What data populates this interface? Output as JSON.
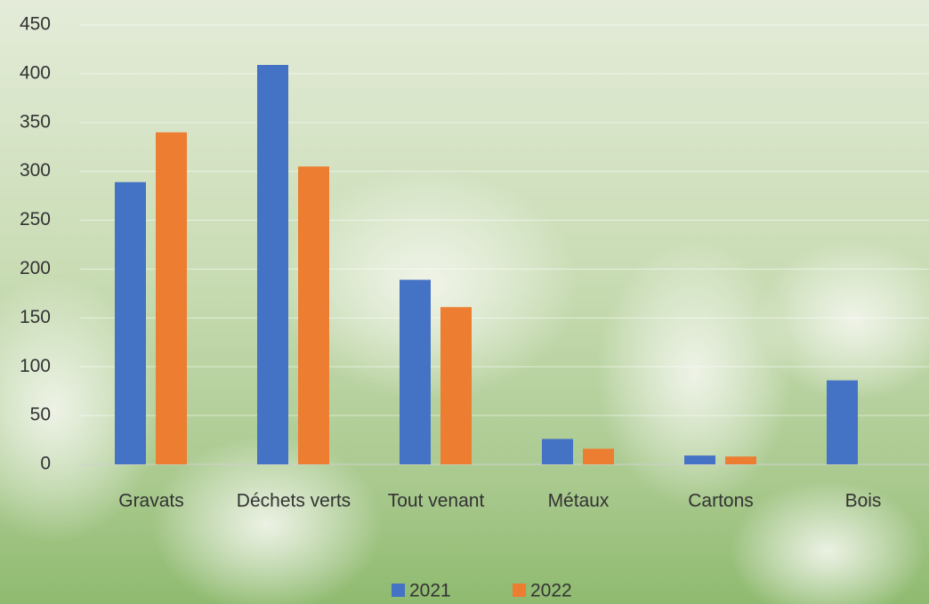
{
  "chart_data": {
    "type": "bar",
    "categories": [
      "Gravats",
      "Déchets verts",
      "Tout venant",
      "Métaux",
      "Cartons",
      "Bois"
    ],
    "series": [
      {
        "name": "2021",
        "color": "#4472c4",
        "values": [
          289,
          409,
          189,
          26,
          9,
          86
        ]
      },
      {
        "name": "2022",
        "color": "#ed7d31",
        "values": [
          340,
          305,
          161,
          16,
          8,
          null
        ]
      }
    ],
    "ylim": [
      0,
      450
    ],
    "yticks": [
      0,
      50,
      100,
      150,
      200,
      250,
      300,
      350,
      400,
      450
    ],
    "grid": true,
    "legend": "bottom"
  }
}
